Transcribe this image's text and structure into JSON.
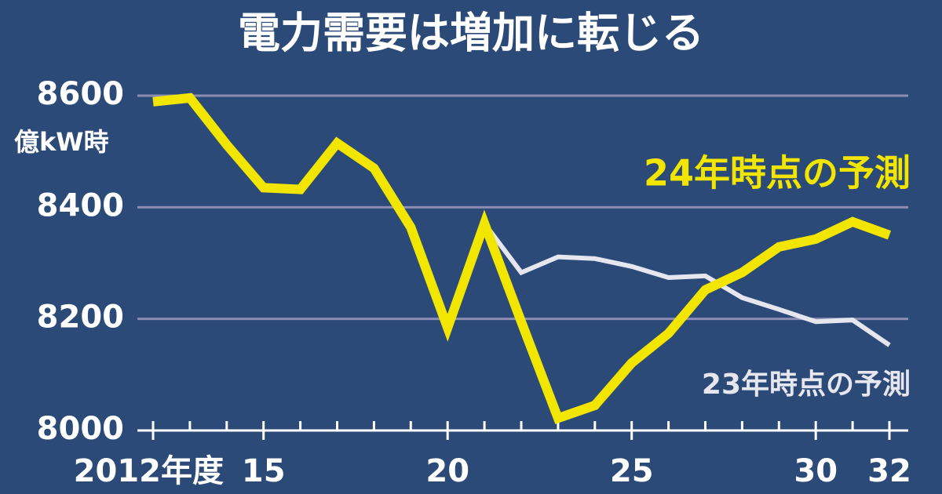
{
  "chart_data": {
    "type": "line",
    "title": "電力需要は増加に転じる",
    "y_label": "億kW時",
    "x": [
      2012,
      2013,
      2014,
      2015,
      2016,
      2017,
      2018,
      2019,
      2020,
      2021,
      2022,
      2023,
      2024,
      2025,
      2026,
      2027,
      2028,
      2029,
      2030,
      2031,
      2032
    ],
    "series": [
      {
        "name": "23年時点の予測",
        "color": "#e6e6ee",
        "values": [
          null,
          null,
          null,
          null,
          null,
          null,
          null,
          null,
          null,
          8371,
          8283,
          8311,
          8308,
          8294,
          8274,
          8277,
          8238,
          8217,
          8195,
          8198,
          8153
        ]
      },
      {
        "name": "24年時点の予測",
        "color": "#f2e600",
        "values": [
          8589,
          8596,
          8512,
          8435,
          8432,
          8515,
          8470,
          8364,
          8184,
          8371,
          8195,
          8022,
          8045,
          8121,
          8174,
          8252,
          8283,
          8329,
          8343,
          8374,
          8350
        ]
      }
    ],
    "xlim": [
      2012,
      2032
    ],
    "xticks": [
      {
        "value": 2012,
        "label": "2012年度"
      },
      {
        "value": 2015,
        "label": "15"
      },
      {
        "value": 2020,
        "label": "20"
      },
      {
        "value": 2025,
        "label": "25"
      },
      {
        "value": 2030,
        "label": "30"
      },
      {
        "value": 2032,
        "label": "32"
      }
    ],
    "ylim": [
      8000,
      8600
    ],
    "yticks": [
      8000,
      8200,
      8400,
      8600
    ],
    "grid": true
  }
}
